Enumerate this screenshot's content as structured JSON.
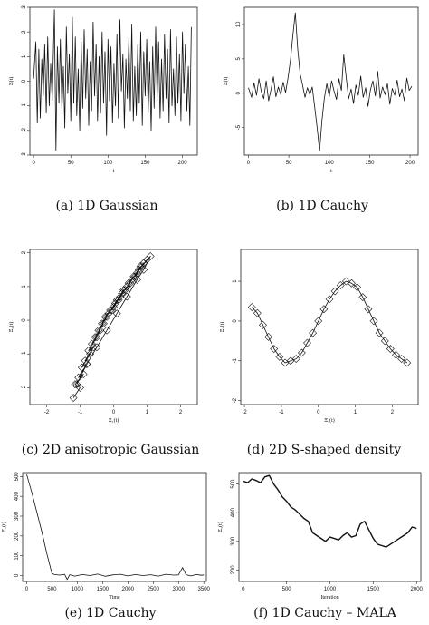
{
  "chart_data": [
    {
      "type": "line",
      "panel": "a",
      "caption": "(a) 1D Gaussian",
      "xlabel": "t",
      "ylabel": "Ξ(t)",
      "xlim": [
        -5,
        220
      ],
      "ylim": [
        -3,
        3
      ],
      "xticks": [
        0,
        50,
        100,
        150,
        200
      ],
      "yticks": [
        -3,
        -2,
        -1,
        0,
        1,
        2,
        3
      ],
      "series": [
        {
          "x": [
            0,
            3,
            5,
            7,
            9,
            11,
            13,
            15,
            17,
            19,
            21,
            23,
            25,
            28,
            30,
            32,
            34,
            36,
            38,
            40,
            42,
            44,
            46,
            48,
            50,
            52,
            54,
            56,
            58,
            60,
            62,
            64,
            66,
            68,
            70,
            72,
            74,
            76,
            78,
            80,
            82,
            84,
            86,
            88,
            90,
            92,
            94,
            96,
            98,
            100,
            102,
            104,
            106,
            108,
            110,
            112,
            114,
            116,
            118,
            120,
            122,
            124,
            126,
            128,
            130,
            132,
            134,
            136,
            138,
            140,
            142,
            144,
            146,
            148,
            150,
            152,
            154,
            156,
            158,
            160,
            162,
            164,
            166,
            168,
            170,
            172,
            174,
            176,
            178,
            180,
            182,
            184,
            186,
            188,
            190,
            192,
            194,
            196,
            198,
            200,
            202,
            204,
            206,
            208,
            210,
            212
          ],
          "y": [
            0.1,
            1.6,
            -1.7,
            1.3,
            -1.5,
            0.9,
            -0.6,
            1.5,
            -1.3,
            1.8,
            -1.0,
            0.7,
            -0.8,
            2.9,
            -2.8,
            1.4,
            -0.9,
            1.7,
            -1.2,
            0.6,
            -1.9,
            2.2,
            -0.5,
            1.1,
            -1.6,
            2.6,
            -0.9,
            1.8,
            -1.4,
            0.5,
            -2.0,
            1.6,
            -1.1,
            2.1,
            -0.7,
            1.3,
            -1.8,
            0.8,
            -1.2,
            2.4,
            -0.6,
            1.5,
            -1.6,
            1.0,
            -1.3,
            2.0,
            -0.9,
            1.2,
            -2.2,
            1.7,
            -0.8,
            1.4,
            -1.7,
            0.7,
            -1.0,
            1.9,
            -1.5,
            2.5,
            -0.4,
            1.1,
            -1.9,
            0.9,
            -0.7,
            1.8,
            -1.2,
            2.3,
            -1.6,
            0.6,
            -1.4,
            1.5,
            -0.9,
            2.0,
            -1.8,
            1.2,
            -0.6,
            1.7,
            -1.3,
            0.8,
            -2.0,
            1.4,
            -1.1,
            2.2,
            -0.8,
            1.6,
            -1.5,
            0.9,
            -1.2,
            1.9,
            -0.7,
            1.3,
            -1.7,
            2.1,
            -1.0,
            0.5,
            -1.4,
            1.8,
            -0.9,
            1.1,
            -1.6,
            2.0,
            -0.5,
            1.5,
            -1.2,
            0.6,
            -1.8,
            2.2
          ]
        }
      ]
    },
    {
      "type": "line",
      "panel": "b",
      "caption": "(b) 1D Cauchy",
      "xlabel": "t",
      "ylabel": "Ξ(t)",
      "xlim": [
        -5,
        210
      ],
      "ylim": [
        -9,
        12.5
      ],
      "xticks": [
        0,
        50,
        100,
        150,
        200
      ],
      "yticks": [
        -5,
        0,
        5,
        10
      ],
      "series": [
        {
          "x": [
            0,
            4,
            7,
            10,
            13,
            16,
            19,
            22,
            25,
            28,
            31,
            34,
            37,
            40,
            43,
            46,
            49,
            52,
            55,
            58,
            61,
            64,
            67,
            70,
            73,
            76,
            79,
            82,
            85,
            88,
            91,
            94,
            97,
            100,
            103,
            106,
            109,
            112,
            115,
            118,
            121,
            124,
            127,
            130,
            133,
            136,
            139,
            142,
            145,
            148,
            151,
            154,
            157,
            160,
            163,
            166,
            169,
            172,
            175,
            178,
            181,
            184,
            187,
            190,
            193,
            196,
            199,
            202
          ],
          "y": [
            0.8,
            -0.6,
            1.5,
            -0.3,
            2.1,
            0.2,
            -0.8,
            1.8,
            -1.1,
            0.6,
            2.4,
            -0.5,
            0.9,
            -0.2,
            1.6,
            0.1,
            2.2,
            4.8,
            8.4,
            11.7,
            6.5,
            2.8,
            1.2,
            -0.6,
            0.8,
            -0.2,
            0.9,
            -2.0,
            -5.0,
            -8.4,
            -4.0,
            -0.7,
            1.4,
            -0.5,
            1.8,
            0.3,
            -0.9,
            2.1,
            0.4,
            5.6,
            2.3,
            -0.8,
            0.6,
            -1.5,
            1.2,
            -0.3,
            2.5,
            -0.6,
            0.8,
            -1.9,
            0.5,
            1.8,
            -0.4,
            3.2,
            -0.7,
            0.9,
            -0.2,
            1.4,
            -1.6,
            0.7,
            -0.3,
            1.9,
            -0.5,
            0.6,
            -1.1,
            2.2,
            0.4,
            1.0
          ]
        }
      ]
    },
    {
      "type": "line",
      "panel": "c",
      "caption": "(c) 2D anisotropic Gaussian",
      "xlabel": "Ξ₁(t)",
      "ylabel": "Ξ₂(t)",
      "xlim": [
        -2.5,
        2.5
      ],
      "ylim": [
        -2.5,
        2.1
      ],
      "xticks": [
        -2,
        -1,
        0,
        1,
        2
      ],
      "yticks": [
        -2,
        -1,
        0,
        1,
        2
      ],
      "series": [
        {
          "x": [
            -1.2,
            -1.0,
            -1.15,
            -0.9,
            -1.05,
            -0.8,
            -0.95,
            -0.7,
            -0.85,
            -0.6,
            -0.75,
            -0.5,
            -0.65,
            -0.4,
            -0.55,
            -0.3,
            -0.45,
            -0.2,
            -0.35,
            -0.1,
            -0.25,
            0.0,
            -0.15,
            0.1,
            -0.05,
            0.2,
            0.05,
            0.3,
            0.15,
            0.4,
            0.25,
            0.5,
            0.35,
            0.6,
            0.45,
            0.7,
            0.55,
            0.8,
            0.65,
            0.9,
            0.75,
            1.0,
            0.85,
            1.1,
            0.9,
            0.7,
            0.4,
            0.1,
            -0.2,
            -0.5,
            -0.8,
            -1.1
          ],
          "y": [
            -2.3,
            -2.0,
            -1.9,
            -1.6,
            -1.7,
            -1.3,
            -1.4,
            -1.0,
            -1.2,
            -0.8,
            -0.9,
            -0.5,
            -0.7,
            -0.3,
            -0.5,
            -0.1,
            -0.3,
            0.1,
            -0.1,
            0.3,
            0.1,
            0.4,
            0.2,
            0.6,
            0.3,
            0.7,
            0.5,
            0.9,
            0.6,
            1.0,
            0.8,
            1.1,
            0.9,
            1.3,
            1.1,
            1.4,
            1.2,
            1.6,
            1.3,
            1.7,
            1.5,
            1.8,
            1.6,
            1.9,
            1.5,
            1.2,
            0.7,
            0.2,
            -0.3,
            -0.8,
            -1.3,
            -1.9
          ]
        }
      ]
    },
    {
      "type": "line",
      "panel": "d",
      "caption": "(d) 2D S-shaped density",
      "xlabel": "Ξ₁(t)",
      "ylabel": "Ξ₂(t)",
      "xlim": [
        -2.1,
        2.7
      ],
      "ylim": [
        -2.1,
        1.8
      ],
      "xticks": [
        -2,
        -1,
        0,
        1,
        2
      ],
      "yticks": [
        -2,
        -1,
        0,
        1
      ],
      "series": [
        {
          "x": [
            -1.8,
            -1.65,
            -1.5,
            -1.35,
            -1.2,
            -1.05,
            -0.9,
            -0.75,
            -0.6,
            -0.45,
            -0.3,
            -0.15,
            0.0,
            0.15,
            0.3,
            0.45,
            0.6,
            0.75,
            0.9,
            1.05,
            1.2,
            1.35,
            1.5,
            1.65,
            1.8,
            1.95,
            2.1,
            2.25,
            2.4
          ],
          "y": [
            0.35,
            0.2,
            -0.1,
            -0.4,
            -0.7,
            -0.9,
            -1.05,
            -1.0,
            -0.95,
            -0.8,
            -0.55,
            -0.3,
            0.0,
            0.3,
            0.55,
            0.75,
            0.9,
            1.0,
            0.95,
            0.85,
            0.6,
            0.3,
            0.0,
            -0.3,
            -0.5,
            -0.7,
            -0.85,
            -0.95,
            -1.05
          ]
        }
      ]
    },
    {
      "type": "line",
      "panel": "e",
      "caption": "(e) 1D Cauchy",
      "xlabel": "Time",
      "ylabel": "Ξ₁(t)",
      "xlim": [
        -80,
        3550
      ],
      "ylim": [
        -30,
        520
      ],
      "xticks": [
        0,
        500,
        1000,
        1500,
        2000,
        2500,
        3000,
        3500
      ],
      "yticks": [
        0,
        100,
        200,
        300,
        400,
        500
      ],
      "series": [
        {
          "x": [
            0,
            100,
            200,
            300,
            400,
            500,
            550,
            650,
            750,
            800,
            850,
            950,
            1100,
            1250,
            1400,
            1550,
            1700,
            1850,
            2000,
            2150,
            2300,
            2450,
            2600,
            2750,
            2900,
            3000,
            3080,
            3150,
            3250,
            3350,
            3450,
            3500
          ],
          "y": [
            510,
            420,
            320,
            220,
            110,
            10,
            5,
            2,
            6,
            -20,
            4,
            -3,
            5,
            0,
            7,
            -4,
            3,
            6,
            -2,
            5,
            0,
            4,
            -3,
            6,
            2,
            3,
            40,
            4,
            -2,
            5,
            1,
            3
          ]
        }
      ]
    },
    {
      "type": "line",
      "panel": "f",
      "caption": "(f) 1D Cauchy – MALA",
      "xlabel": "Iteration",
      "ylabel": "Ξ₁(t)",
      "xlim": [
        -50,
        2050
      ],
      "ylim": [
        160,
        540
      ],
      "xticks": [
        0,
        500,
        1000,
        1500,
        2000
      ],
      "yticks": [
        200,
        300,
        400,
        500
      ],
      "series": [
        {
          "x": [
            0,
            50,
            100,
            150,
            200,
            250,
            300,
            350,
            400,
            450,
            500,
            550,
            600,
            650,
            700,
            750,
            800,
            850,
            900,
            950,
            1000,
            1050,
            1100,
            1150,
            1200,
            1250,
            1300,
            1350,
            1400,
            1450,
            1500,
            1550,
            1600,
            1650,
            1700,
            1750,
            1800,
            1850,
            1900,
            1950,
            2000
          ],
          "y": [
            510,
            505,
            518,
            512,
            505,
            525,
            530,
            500,
            480,
            455,
            440,
            420,
            410,
            395,
            380,
            370,
            330,
            320,
            310,
            300,
            315,
            310,
            305,
            320,
            330,
            315,
            320,
            360,
            370,
            340,
            310,
            290,
            285,
            280,
            290,
            300,
            310,
            320,
            330,
            350,
            345
          ]
        }
      ]
    }
  ]
}
